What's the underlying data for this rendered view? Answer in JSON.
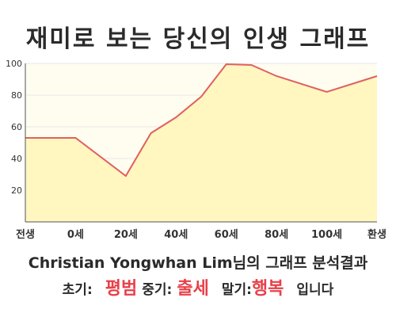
{
  "chart_data": {
    "type": "area",
    "title": "재미로 보는 당신의 인생 그래프",
    "x_categories": [
      "전생",
      "0세",
      "20세",
      "40세",
      "60세",
      "80세",
      "100세",
      "환생"
    ],
    "points": [
      {
        "x": "전생",
        "y": 53
      },
      {
        "x": "0세",
        "y": 53
      },
      {
        "x": "20세",
        "y": 29
      },
      {
        "x": "30세",
        "y": 56
      },
      {
        "x": "40세",
        "y": 66
      },
      {
        "x": "50세",
        "y": 79
      },
      {
        "x": "60세",
        "y": 99.5
      },
      {
        "x": "70세",
        "y": 99
      },
      {
        "x": "80세",
        "y": 92
      },
      {
        "x": "100세",
        "y": 82
      },
      {
        "x": "환생",
        "y": 92
      }
    ],
    "yticks": [
      20,
      40,
      60,
      80,
      100
    ],
    "ylim": [
      0,
      100
    ],
    "grid": true,
    "colors": {
      "line": "#e06060",
      "fill": "#fff6c0",
      "plot_bg": "#fffdf0",
      "grid": "#e8e8e8"
    }
  },
  "result": {
    "name": "Christian Yongwhan Lim",
    "suffix": "님의 그래프 분석결과"
  },
  "stages": {
    "early_label": "초기:",
    "early_value": "평범",
    "middle_label": "중기:",
    "middle_value": "출세",
    "late_label": "말기:",
    "late_value": "행복",
    "ending": "입니다"
  }
}
